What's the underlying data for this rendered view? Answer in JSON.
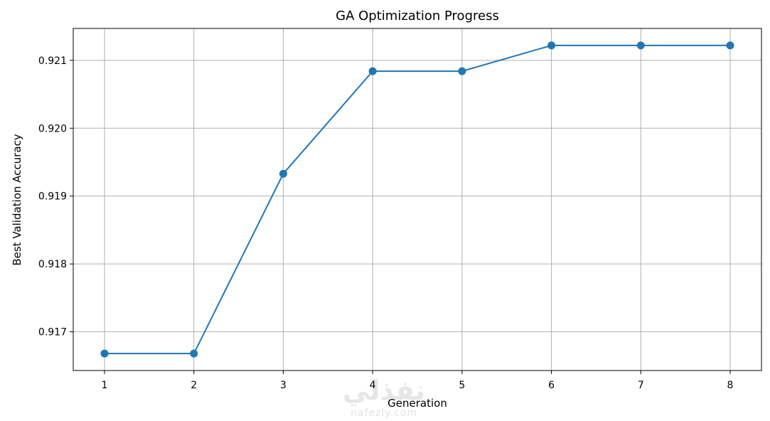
{
  "chart_data": {
    "type": "line",
    "title": "GA Optimization Progress",
    "xlabel": "Generation",
    "ylabel": "Best Validation Accuracy",
    "x": [
      1,
      2,
      3,
      4,
      5,
      6,
      7,
      8
    ],
    "series": [
      {
        "values": [
          0.91668,
          0.91668,
          0.91933,
          0.92084,
          0.92084,
          0.92122,
          0.92122,
          0.92122
        ],
        "color": "#1f77b4",
        "marker": "circle"
      }
    ],
    "xticks": [
      "1",
      "2",
      "3",
      "4",
      "5",
      "6",
      "7",
      "8"
    ],
    "yticks": [
      "0.917",
      "0.918",
      "0.919",
      "0.920",
      "0.921"
    ],
    "xlim": [
      0.65,
      8.35
    ],
    "ylim": [
      0.91643,
      0.92147
    ],
    "grid": true
  },
  "watermark": {
    "arabic": "نفذلي",
    "latin": "nafezly.com"
  }
}
